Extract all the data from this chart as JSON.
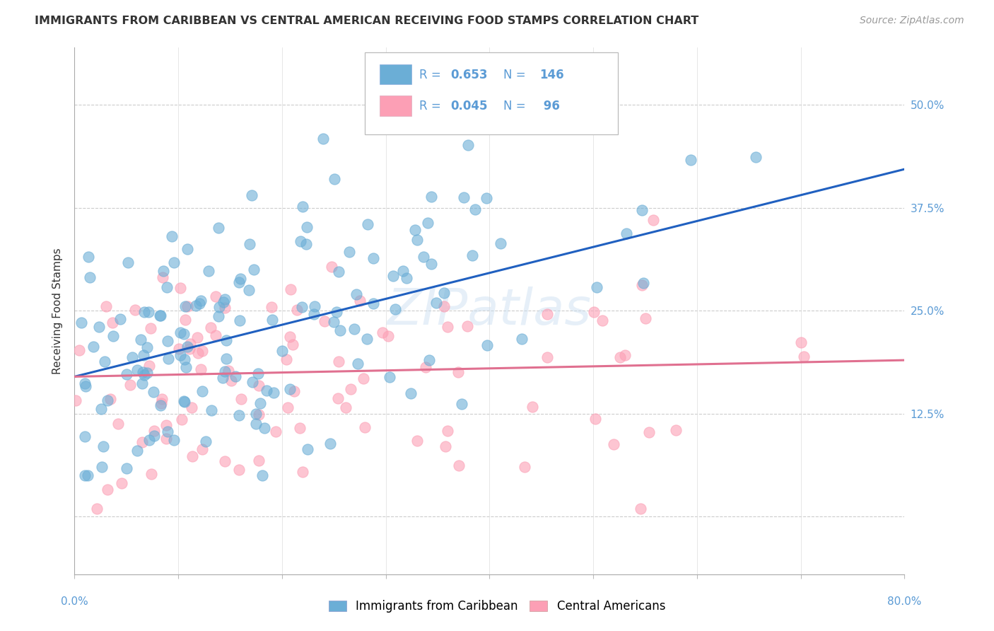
{
  "title": "IMMIGRANTS FROM CARIBBEAN VS CENTRAL AMERICAN RECEIVING FOOD STAMPS CORRELATION CHART",
  "source": "Source: ZipAtlas.com",
  "ylabel": "Receiving Food Stamps",
  "yticks": [
    0.0,
    0.125,
    0.25,
    0.375,
    0.5
  ],
  "ytick_labels": [
    "",
    "12.5%",
    "25.0%",
    "37.5%",
    "50.0%"
  ],
  "xlim": [
    0.0,
    0.8
  ],
  "ylim": [
    -0.07,
    0.57
  ],
  "caribbean_R": 0.653,
  "caribbean_N": 146,
  "central_R": 0.045,
  "central_N": 96,
  "caribbean_color": "#6baed6",
  "central_color": "#fc9fb5",
  "caribbean_line_color": "#2060c0",
  "central_line_color": "#e07090",
  "legend_label_caribbean": "Immigrants from Caribbean",
  "legend_label_central": "Central Americans",
  "watermark": "ZIPatlas",
  "background_color": "#ffffff",
  "title_color": "#333333",
  "axis_label_color": "#5b9bd5",
  "grid_color": "#cccccc",
  "title_fontsize": 11.5,
  "axis_fontsize": 11,
  "tick_fontsize": 11,
  "source_fontsize": 10,
  "legend_fontsize": 12,
  "legend_text_color": "#5b9bd5",
  "reg_intercept_caribbean": 0.17,
  "reg_slope_caribbean": 0.315,
  "reg_intercept_central": 0.17,
  "reg_slope_central": 0.025
}
